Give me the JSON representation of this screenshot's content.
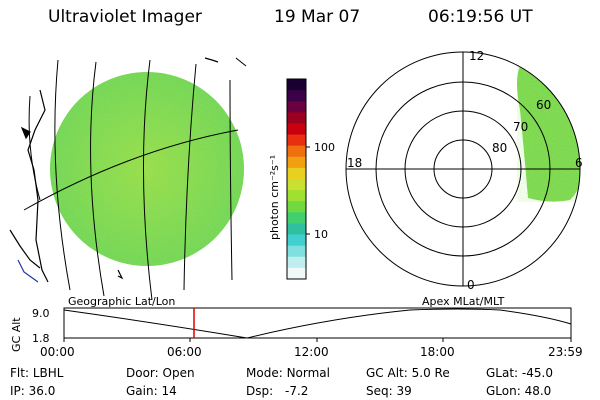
{
  "header": {
    "instrument": "Ultraviolet Imager",
    "date": "19 Mar 07",
    "time": "06:19:56 UT"
  },
  "colorbar": {
    "label": "photon cm⁻²s⁻¹",
    "ticks": [
      "100",
      "10"
    ],
    "colors": [
      "#1a0030",
      "#3a0048",
      "#6a0040",
      "#9a0020",
      "#c80010",
      "#e83010",
      "#f07010",
      "#f0a010",
      "#e8d020",
      "#c8e030",
      "#a0e030",
      "#70d840",
      "#40d070",
      "#30c0a0",
      "#40d0d0",
      "#80e0e0",
      "#c0eeee",
      "#f0f8f8"
    ]
  },
  "polar": {
    "labels": {
      "top": "12",
      "bottom": "0",
      "left": "18",
      "right": "6"
    },
    "rings": [
      "80",
      "70",
      "60"
    ]
  },
  "orbit": {
    "left_title": "Geographic Lat/Lon",
    "right_title": "Apex  MLat/MLT",
    "ylabel": "GC Alt",
    "yticks": [
      "9.0",
      "1.8"
    ],
    "xticks": [
      "00:00",
      "06:00",
      "12:00",
      "18:00",
      "23:59"
    ]
  },
  "footer": {
    "row1": [
      {
        "key": "Flt:",
        "value": "LBHL"
      },
      {
        "key": "Door:",
        "value": "Open"
      },
      {
        "key": "Mode:",
        "value": "Normal"
      },
      {
        "key": "GC Alt:",
        "value": "5.0 Re"
      },
      {
        "key": "GLat:",
        "value": "-45.0"
      }
    ],
    "row2": [
      {
        "key": "IP:",
        "value": "36.0"
      },
      {
        "key": "Gain:",
        "value": "14"
      },
      {
        "key": "Dsp:",
        "value": "-7.2"
      },
      {
        "key": "Seq:",
        "value": "39"
      },
      {
        "key": "GLon:",
        "value": "48.0"
      }
    ]
  }
}
